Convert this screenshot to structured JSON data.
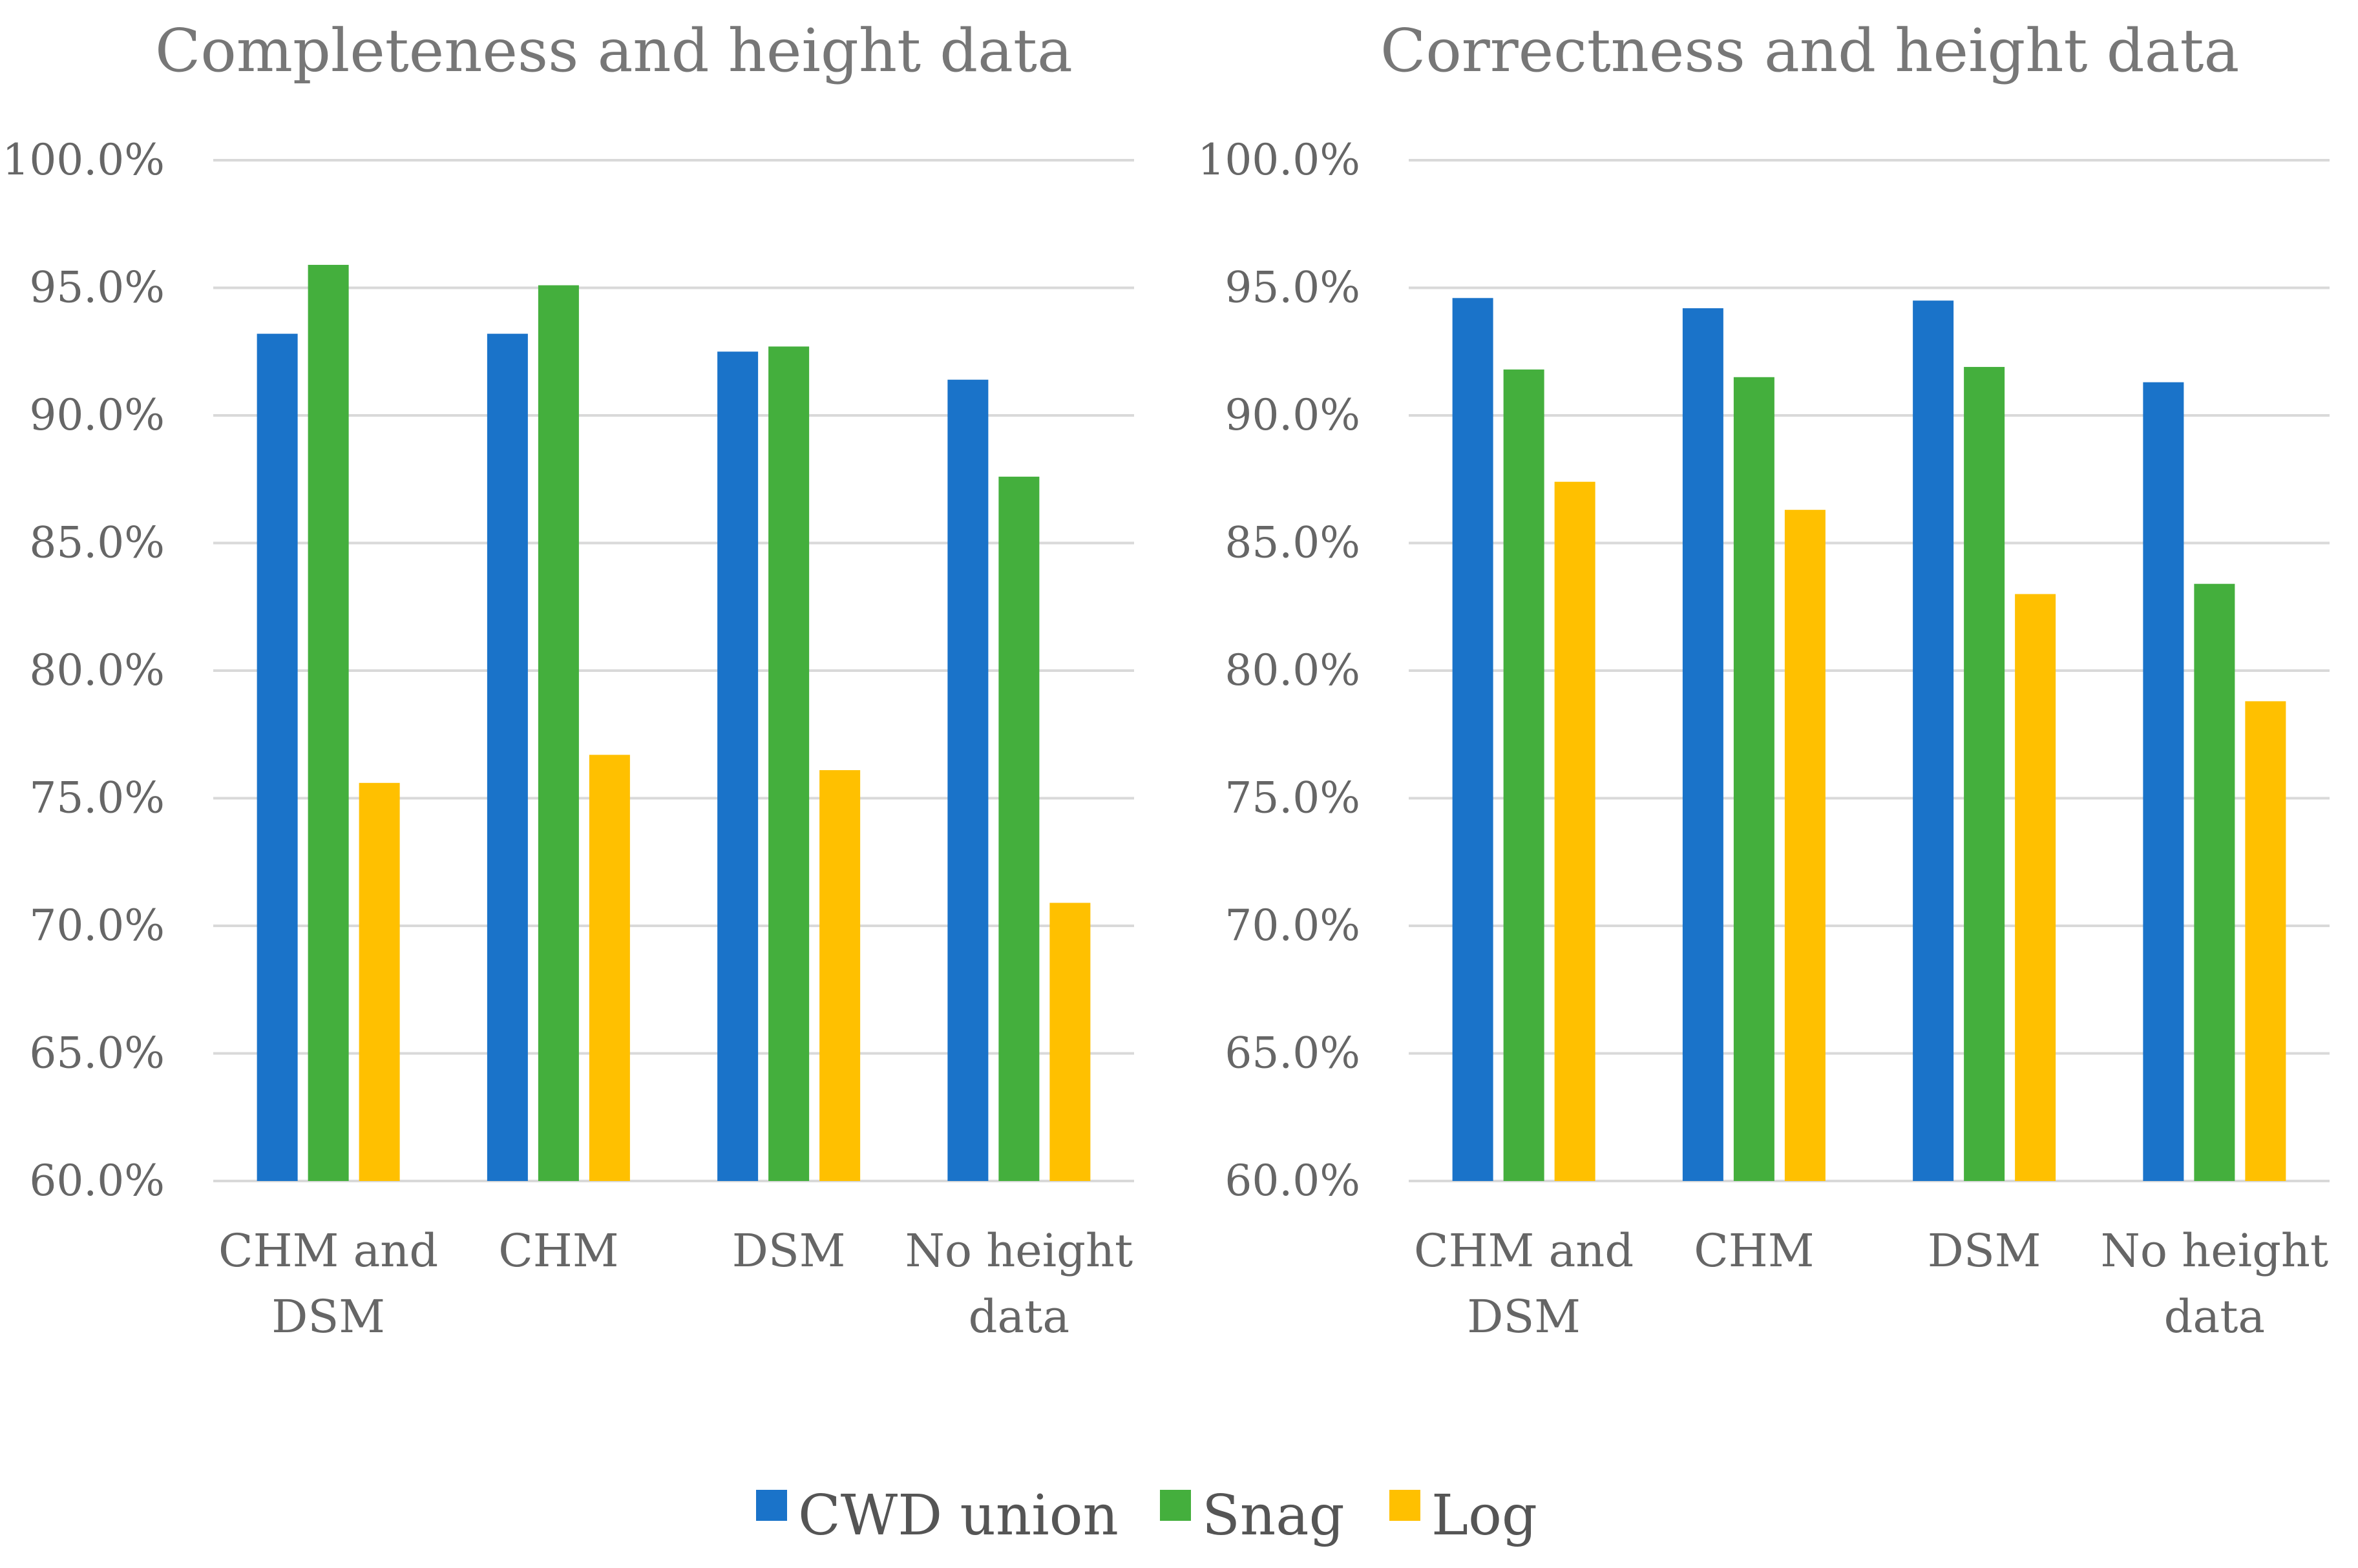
{
  "chart_data": [
    {
      "type": "bar",
      "title": "Completeness and height data",
      "categories": [
        [
          "CHM and",
          "DSM"
        ],
        [
          "CHM"
        ],
        [
          "DSM"
        ],
        [
          "No height",
          "data"
        ]
      ],
      "series": [
        {
          "name": "CWD union",
          "values": [
            93.2,
            93.2,
            92.5,
            91.4
          ]
        },
        {
          "name": "Snag",
          "values": [
            95.9,
            95.1,
            92.7,
            87.6
          ]
        },
        {
          "name": "Log",
          "values": [
            75.6,
            76.7,
            76.1,
            70.9
          ]
        }
      ],
      "ylim": [
        60,
        100
      ],
      "yticks": [
        "100.0%",
        "95.0%",
        "90.0%",
        "85.0%",
        "80.0%",
        "75.0%",
        "70.0%",
        "65.0%",
        "60.0%"
      ],
      "xlabel": "",
      "ylabel": "",
      "grid": true
    },
    {
      "type": "bar",
      "title": "Correctness and height data",
      "categories": [
        [
          "CHM and",
          "DSM"
        ],
        [
          "CHM"
        ],
        [
          "DSM"
        ],
        [
          "No height",
          "data"
        ]
      ],
      "series": [
        {
          "name": "CWD union",
          "values": [
            94.6,
            94.2,
            94.5,
            91.3
          ]
        },
        {
          "name": "Snag",
          "values": [
            91.8,
            91.5,
            91.9,
            83.4
          ]
        },
        {
          "name": "Log",
          "values": [
            87.4,
            86.3,
            83.0,
            78.8
          ]
        }
      ],
      "ylim": [
        60,
        100
      ],
      "yticks": [
        "100.0%",
        "95.0%",
        "90.0%",
        "85.0%",
        "80.0%",
        "75.0%",
        "70.0%",
        "65.0%",
        "60.0%"
      ],
      "xlabel": "",
      "ylabel": "",
      "grid": true
    }
  ],
  "legend": {
    "placement": "bottom",
    "items": [
      {
        "name": "CWD union",
        "color": "#1A73C9"
      },
      {
        "name": "Snag",
        "color": "#44AF3D"
      },
      {
        "name": "Log",
        "color": "#FFC000"
      }
    ]
  },
  "colors": {
    "grid": "#D9D9D9",
    "text": "#666666"
  }
}
